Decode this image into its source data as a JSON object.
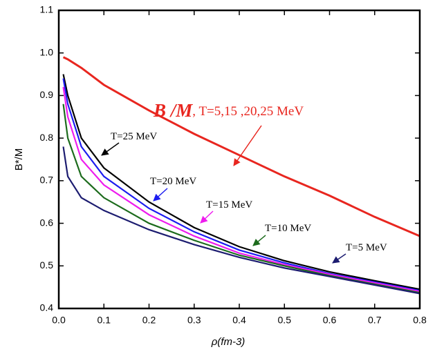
{
  "chart_data": {
    "type": "line",
    "xlabel": "ρ(fm-3)",
    "ylabel": "B*/M",
    "xlim": [
      0,
      0.8
    ],
    "ylim": [
      0.4,
      1.1
    ],
    "xticks": [
      {
        "value": 0,
        "label": "0.0"
      },
      0.1,
      0.2,
      0.3,
      0.4,
      0.5,
      0.6,
      0.7,
      0.8
    ],
    "yticks": [
      0.4,
      0.5,
      0.6,
      0.7,
      0.8,
      0.9,
      {
        "value": 1,
        "label": "1.0"
      },
      1.1
    ],
    "x": [
      0.01,
      0.02,
      0.05,
      0.1,
      0.2,
      0.3,
      0.4,
      0.5,
      0.6,
      0.7,
      0.8
    ],
    "series": [
      {
        "name": "B /M",
        "color": "#e8261f",
        "values": [
          0.99,
          0.985,
          0.965,
          0.925,
          0.865,
          0.81,
          0.76,
          0.71,
          0.665,
          0.615,
          0.57
        ],
        "note": ", T=5,15 ,20,25 MeV"
      },
      {
        "name": "T=25 MeV",
        "color": "#000000",
        "values": [
          0.95,
          0.9,
          0.8,
          0.73,
          0.65,
          0.59,
          0.545,
          0.512,
          0.486,
          0.465,
          0.445
        ]
      },
      {
        "name": "T=20 MeV",
        "color": "#1c1cf0",
        "values": [
          0.94,
          0.88,
          0.78,
          0.71,
          0.635,
          0.58,
          0.537,
          0.507,
          0.482,
          0.462,
          0.442
        ]
      },
      {
        "name": "T=15 MeV",
        "color": "#ee1cee",
        "values": [
          0.92,
          0.85,
          0.75,
          0.69,
          0.62,
          0.57,
          0.53,
          0.503,
          0.48,
          0.46,
          0.44
        ]
      },
      {
        "name": "T=10 MeV",
        "color": "#1c6b1c",
        "values": [
          0.88,
          0.8,
          0.71,
          0.66,
          0.6,
          0.56,
          0.525,
          0.5,
          0.477,
          0.457,
          0.437
        ]
      },
      {
        "name": "T=5 MeV",
        "color": "#1c1c70",
        "values": [
          0.78,
          0.71,
          0.66,
          0.63,
          0.585,
          0.55,
          0.52,
          0.495,
          0.475,
          0.455,
          0.435
        ]
      }
    ]
  }
}
